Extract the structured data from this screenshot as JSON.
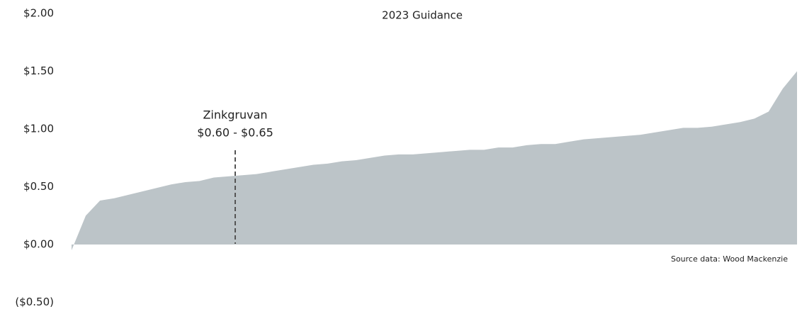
{
  "chart_data": {
    "type": "area",
    "title": "2023 Guidance",
    "annotation": [
      "Zinkgruvan",
      "$0.60 - $0.65"
    ],
    "source": "Source data: Wood Mackenzie",
    "color": "#bcc4c8",
    "values": [
      -0.05,
      0.25,
      0.38,
      0.4,
      0.43,
      0.46,
      0.49,
      0.52,
      0.54,
      0.55,
      0.58,
      0.59,
      0.6,
      0.61,
      0.63,
      0.65,
      0.67,
      0.69,
      0.7,
      0.72,
      0.73,
      0.75,
      0.77,
      0.78,
      0.78,
      0.79,
      0.8,
      0.81,
      0.82,
      0.82,
      0.84,
      0.84,
      0.86,
      0.87,
      0.87,
      0.89,
      0.91,
      0.92,
      0.93,
      0.94,
      0.95,
      0.97,
      0.99,
      1.01,
      1.01,
      1.02,
      1.04,
      1.06,
      1.09,
      1.15,
      1.35,
      1.5
    ],
    "ylim": [
      -0.5,
      2.0
    ],
    "yticks": [
      {
        "value": -0.5,
        "label": "($0.50)"
      },
      {
        "value": 0,
        "label": "$0.00"
      },
      {
        "value": 0.5,
        "label": "$0.50"
      },
      {
        "value": 1.0,
        "label": "$1.00"
      },
      {
        "value": 1.5,
        "label": "$1.50"
      },
      {
        "value": 2.0,
        "label": "$2.00"
      }
    ],
    "grid": false
  }
}
